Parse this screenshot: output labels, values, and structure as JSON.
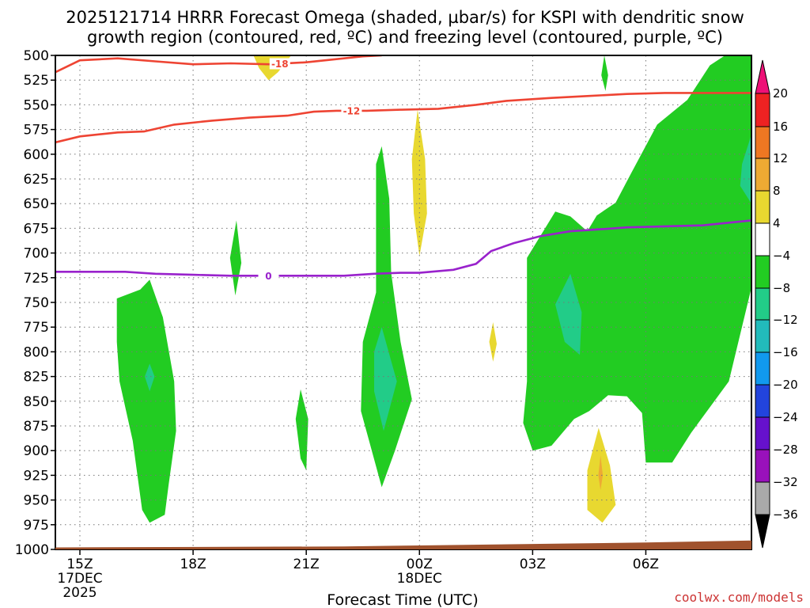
{
  "chart_data": {
    "type": "time-height cross section",
    "title_line1": "2025121714 HRRR Forecast Omega (shaded, µbar/s) for KSPI with dendritic snow",
    "title_line2": "growth region (contoured, red, ºC) and freezing level (contoured, purple, ºC)",
    "xlabel": "Forecast Time (UTC)",
    "credit": "coolwx.com/models",
    "x_range_hours": [
      14.35,
      32.8
    ],
    "y_range_mb": [
      500,
      1000
    ],
    "y_ticks": [
      "500",
      "525",
      "550",
      "575",
      "600",
      "625",
      "650",
      "675",
      "700",
      "725",
      "750",
      "775",
      "800",
      "825",
      "850",
      "875",
      "900",
      "925",
      "950",
      "975",
      "1000"
    ],
    "x_ticks": [
      {
        "hour": 15,
        "lines": [
          "15Z",
          "17DEC",
          "2025"
        ]
      },
      {
        "hour": 18,
        "lines": [
          "18Z"
        ]
      },
      {
        "hour": 21,
        "lines": [
          "21Z"
        ]
      },
      {
        "hour": 24,
        "lines": [
          "00Z",
          "18DEC"
        ]
      },
      {
        "hour": 27,
        "lines": [
          "03Z"
        ]
      },
      {
        "hour": 30,
        "lines": [
          "06Z"
        ]
      }
    ],
    "colorbar": {
      "labels": [
        "20",
        "16",
        "12",
        "8",
        "4",
        "−4",
        "−8",
        "−12",
        "−16",
        "−20",
        "−24",
        "−28",
        "−32",
        "−36"
      ],
      "colors": [
        "#ee2222",
        "#ee7722",
        "#eeaa33",
        "#e8d830",
        "#ffffff",
        "#22cc22",
        "#22cc88",
        "#22bbbb",
        "#1199ee",
        "#2244dd",
        "#6611cc",
        "#9911bb",
        "#aaaaaa"
      ],
      "top_arrow_color": "#ee1177",
      "bottom_arrow_color": "#000000"
    },
    "contours": [
      {
        "name": "dgz-minus18",
        "label": "-18",
        "color": "#ee4433",
        "points": [
          [
            14.35,
            517
          ],
          [
            15.0,
            505
          ],
          [
            16.0,
            503
          ],
          [
            17.0,
            506
          ],
          [
            18.0,
            509
          ],
          [
            19.0,
            508
          ],
          [
            20.0,
            509
          ],
          [
            21.0,
            507
          ],
          [
            22.0,
            503
          ],
          [
            22.5,
            501
          ],
          [
            23.0,
            500
          ]
        ]
      },
      {
        "name": "dgz-minus12",
        "label": "-12",
        "color": "#ee4433",
        "points": [
          [
            14.35,
            588
          ],
          [
            15.0,
            582
          ],
          [
            16.0,
            578
          ],
          [
            16.7,
            577
          ],
          [
            17.5,
            570
          ],
          [
            18.5,
            566
          ],
          [
            19.5,
            563
          ],
          [
            20.5,
            561
          ],
          [
            21.2,
            557
          ],
          [
            21.8,
            556
          ],
          [
            22.6,
            556
          ],
          [
            23.5,
            555
          ],
          [
            24.5,
            554
          ],
          [
            25.5,
            550
          ],
          [
            26.3,
            546
          ],
          [
            27.5,
            543
          ],
          [
            28.5,
            541
          ],
          [
            29.5,
            539
          ],
          [
            30.5,
            538
          ],
          [
            31.5,
            538
          ],
          [
            32.8,
            538
          ]
        ]
      },
      {
        "name": "freezing-level",
        "label": "0",
        "color": "#9922cc",
        "points": [
          [
            14.35,
            719
          ],
          [
            15.5,
            719
          ],
          [
            16.2,
            719
          ],
          [
            17.0,
            721
          ],
          [
            18.0,
            722
          ],
          [
            19.0,
            723
          ],
          [
            20.0,
            723
          ],
          [
            21.0,
            723
          ],
          [
            22.0,
            723
          ],
          [
            22.8,
            721
          ],
          [
            23.5,
            720
          ],
          [
            24.0,
            720
          ],
          [
            24.9,
            717
          ],
          [
            25.5,
            711
          ],
          [
            25.9,
            698
          ],
          [
            26.5,
            690
          ],
          [
            27.2,
            683
          ],
          [
            28.0,
            678
          ],
          [
            28.8,
            676
          ],
          [
            29.5,
            674
          ],
          [
            30.5,
            673
          ],
          [
            31.5,
            672
          ],
          [
            32.8,
            667
          ]
        ]
      }
    ],
    "omega_regions": [
      {
        "name": "ascent-band-16z",
        "value": "-4",
        "points": [
          [
            15.98,
            746
          ],
          [
            16.6,
            737
          ],
          [
            16.85,
            727
          ],
          [
            17.2,
            765
          ],
          [
            17.5,
            830
          ],
          [
            17.55,
            880
          ],
          [
            17.35,
            935
          ],
          [
            17.25,
            965
          ],
          [
            16.85,
            973
          ],
          [
            16.65,
            960
          ],
          [
            16.4,
            890
          ],
          [
            16.05,
            830
          ],
          [
            15.98,
            790
          ]
        ]
      },
      {
        "name": "ascent-core-16z",
        "value": "-8",
        "points": [
          [
            16.85,
            812
          ],
          [
            16.98,
            825
          ],
          [
            16.85,
            840
          ],
          [
            16.72,
            825
          ]
        ]
      },
      {
        "name": "ascent-19z",
        "value": "-4",
        "points": [
          [
            19.15,
            667
          ],
          [
            19.28,
            710
          ],
          [
            19.12,
            743
          ],
          [
            18.98,
            705
          ]
        ]
      },
      {
        "name": "ascent-21z",
        "value": "-4",
        "points": [
          [
            20.85,
            838
          ],
          [
            21.05,
            868
          ],
          [
            21.0,
            920
          ],
          [
            20.85,
            908
          ],
          [
            20.72,
            868
          ]
        ]
      },
      {
        "name": "ascent-column-23z",
        "value": "-4",
        "points": [
          [
            23.0,
            592
          ],
          [
            23.2,
            645
          ],
          [
            23.25,
            720
          ],
          [
            23.5,
            790
          ],
          [
            23.8,
            848
          ],
          [
            23.35,
            900
          ],
          [
            23.0,
            937
          ],
          [
            22.7,
            895
          ],
          [
            22.45,
            860
          ],
          [
            22.5,
            790
          ],
          [
            22.85,
            740
          ],
          [
            22.85,
            650
          ],
          [
            22.85,
            610
          ]
        ]
      },
      {
        "name": "ascent-core-23z",
        "value": "-8",
        "points": [
          [
            23.0,
            775
          ],
          [
            23.4,
            830
          ],
          [
            23.05,
            880
          ],
          [
            22.8,
            840
          ],
          [
            22.8,
            800
          ]
        ]
      },
      {
        "name": "ascent-column-03z",
        "value": "-4",
        "points": [
          [
            28.0,
            663
          ],
          [
            28.45,
            678
          ],
          [
            28.7,
            662
          ],
          [
            29.2,
            649
          ],
          [
            29.6,
            620
          ],
          [
            30.3,
            570
          ],
          [
            31.1,
            545
          ],
          [
            31.7,
            510
          ],
          [
            32.1,
            500
          ],
          [
            32.8,
            500
          ],
          [
            32.8,
            735
          ],
          [
            32.2,
            830
          ],
          [
            31.2,
            882
          ],
          [
            30.7,
            912
          ],
          [
            30.0,
            912
          ],
          [
            29.9,
            862
          ],
          [
            29.5,
            845
          ],
          [
            29.0,
            844
          ],
          [
            28.5,
            860
          ],
          [
            28.1,
            868
          ],
          [
            27.5,
            895
          ],
          [
            27.0,
            900
          ],
          [
            26.75,
            872
          ],
          [
            26.85,
            830
          ],
          [
            26.85,
            705
          ],
          [
            27.6,
            658
          ]
        ]
      },
      {
        "name": "ascent-core-03z",
        "value": "-8",
        "points": [
          [
            28.0,
            721
          ],
          [
            28.3,
            760
          ],
          [
            28.25,
            803
          ],
          [
            27.85,
            790
          ],
          [
            27.6,
            752
          ]
        ]
      },
      {
        "name": "ascent-sliver-05z",
        "value": "-4",
        "points": [
          [
            28.9,
            500
          ],
          [
            29.0,
            520
          ],
          [
            28.93,
            536
          ],
          [
            28.82,
            520
          ]
        ]
      },
      {
        "name": "ascent-core-08z",
        "value": "-8",
        "points": [
          [
            32.8,
            580
          ],
          [
            32.8,
            650
          ],
          [
            32.5,
            632
          ],
          [
            32.55,
            610
          ]
        ]
      },
      {
        "name": "sink-top-20z",
        "value": "4",
        "points": [
          [
            19.6,
            500
          ],
          [
            20.6,
            500
          ],
          [
            20.25,
            517
          ],
          [
            20.0,
            525
          ],
          [
            19.75,
            513
          ]
        ]
      },
      {
        "name": "sink-lens-00z",
        "value": "4",
        "points": [
          [
            23.95,
            555
          ],
          [
            24.15,
            605
          ],
          [
            24.2,
            660
          ],
          [
            24.0,
            703
          ],
          [
            23.85,
            660
          ],
          [
            23.8,
            605
          ]
        ]
      },
      {
        "name": "sink-sliver-02z",
        "value": "4",
        "points": [
          [
            25.95,
            770
          ],
          [
            26.05,
            792
          ],
          [
            25.95,
            810
          ],
          [
            25.85,
            790
          ]
        ]
      },
      {
        "name": "sink-blob-05z",
        "value": "4",
        "points": [
          [
            28.75,
            877
          ],
          [
            29.05,
            915
          ],
          [
            29.2,
            955
          ],
          [
            28.85,
            973
          ],
          [
            28.45,
            960
          ],
          [
            28.45,
            920
          ]
        ]
      },
      {
        "name": "sink-core-05z",
        "value": "8",
        "points": [
          [
            28.8,
            905
          ],
          [
            28.86,
            925
          ],
          [
            28.8,
            940
          ],
          [
            28.74,
            925
          ]
        ]
      }
    ]
  }
}
